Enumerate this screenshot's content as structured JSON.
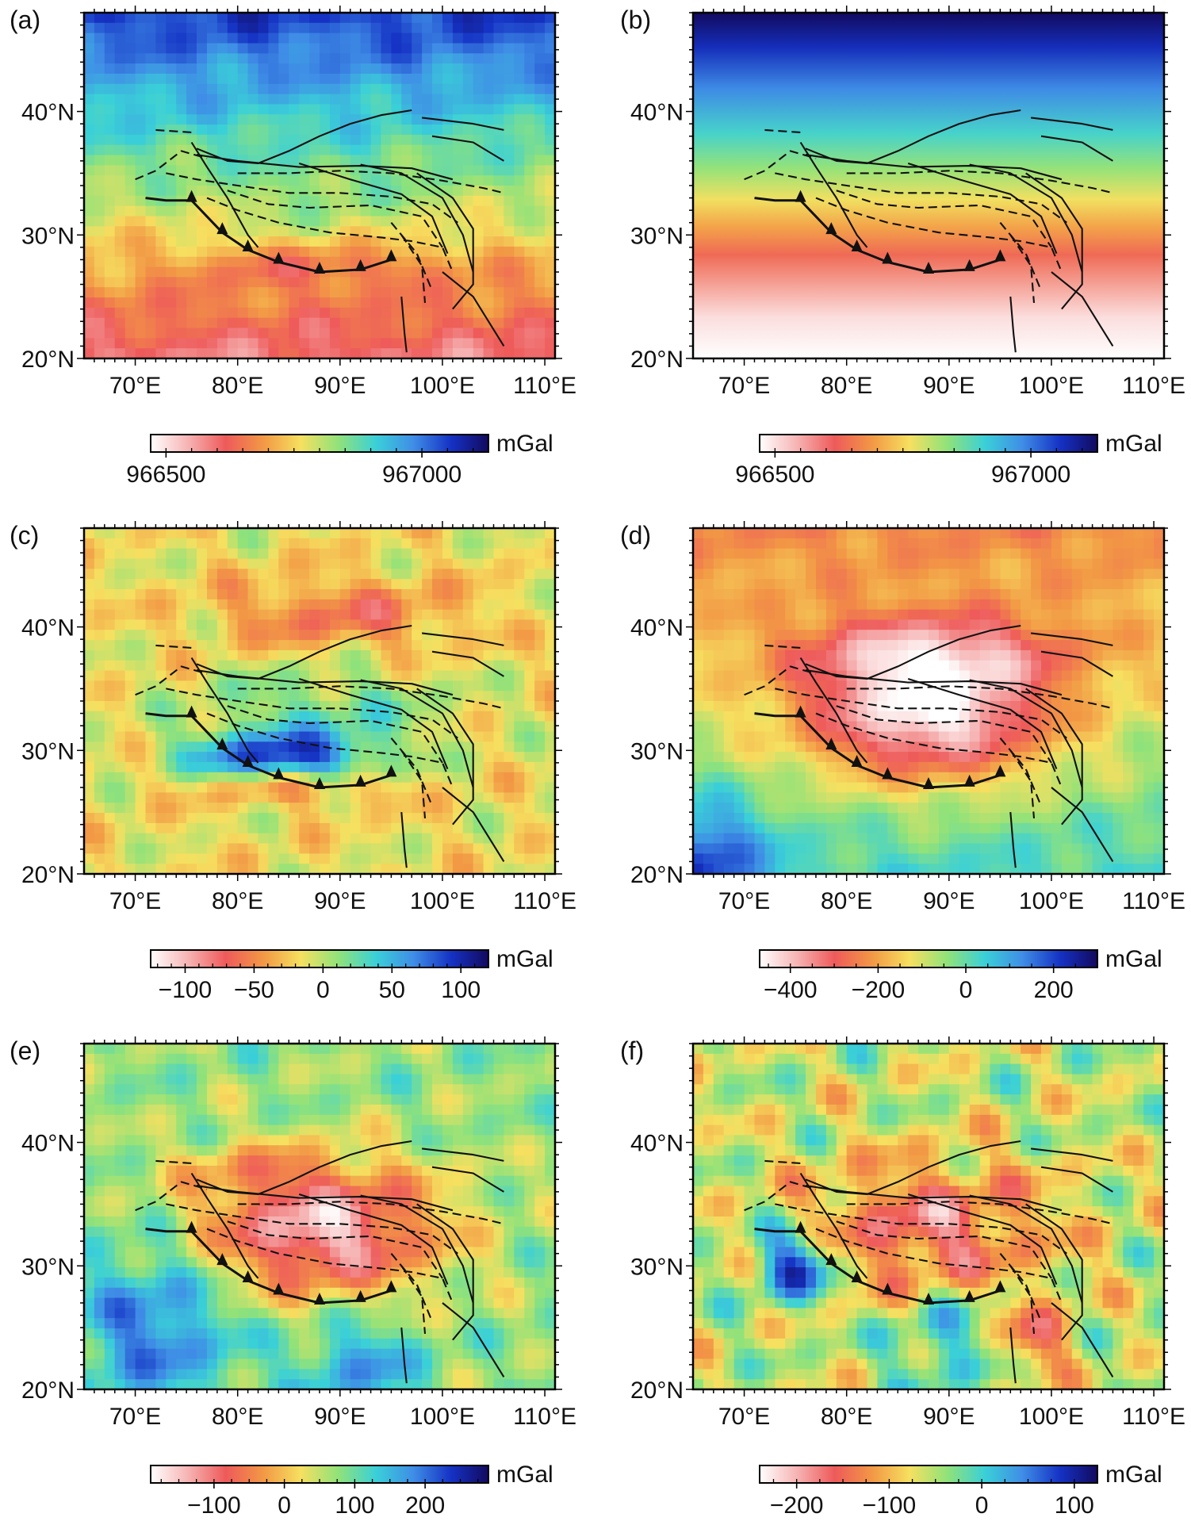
{
  "chart_data": [
    {
      "panel_label": "(a)",
      "type": "heatmap",
      "field": "a",
      "x_ticks": [
        "70°E",
        "80°E",
        "90°E",
        "100°E",
        "110°E"
      ],
      "y_ticks": [
        "20°N",
        "30°N",
        "40°N"
      ],
      "xlim": [
        65,
        111
      ],
      "ylim": [
        20,
        48
      ],
      "colorbar": {
        "unit": "mGal",
        "range": [
          966470,
          967130
        ],
        "tick_labels": [
          "966500",
          "967000"
        ],
        "tick_values": [
          966500,
          967000
        ]
      }
    },
    {
      "panel_label": "(b)",
      "type": "heatmap",
      "field": "b",
      "x_ticks": [
        "70°E",
        "80°E",
        "90°E",
        "100°E",
        "110°E"
      ],
      "y_ticks": [
        "20°N",
        "30°N",
        "40°N"
      ],
      "xlim": [
        65,
        111
      ],
      "ylim": [
        20,
        48
      ],
      "colorbar": {
        "unit": "mGal",
        "range": [
          966470,
          967130
        ],
        "tick_labels": [
          "966500",
          "967000"
        ],
        "tick_values": [
          966500,
          967000
        ]
      }
    },
    {
      "panel_label": "(c)",
      "type": "heatmap",
      "field": "c",
      "x_ticks": [
        "70°E",
        "80°E",
        "90°E",
        "100°E",
        "110°E"
      ],
      "y_ticks": [
        "20°N",
        "30°N",
        "40°N"
      ],
      "xlim": [
        65,
        111
      ],
      "ylim": [
        20,
        48
      ],
      "colorbar": {
        "unit": "mGal",
        "range": [
          -125,
          120
        ],
        "tick_labels": [
          "−100",
          "−50",
          "0",
          "50",
          "100"
        ],
        "tick_values": [
          -100,
          -50,
          0,
          50,
          100
        ]
      }
    },
    {
      "panel_label": "(d)",
      "type": "heatmap",
      "field": "d",
      "x_ticks": [
        "70°E",
        "80°E",
        "90°E",
        "100°E",
        "110°E"
      ],
      "y_ticks": [
        "20°N",
        "30°N",
        "40°N"
      ],
      "xlim": [
        65,
        111
      ],
      "ylim": [
        20,
        48
      ],
      "colorbar": {
        "unit": "mGal",
        "range": [
          -470,
          300
        ],
        "tick_labels": [
          "−400",
          "−200",
          "0",
          "200"
        ],
        "tick_values": [
          -400,
          -200,
          0,
          200
        ]
      }
    },
    {
      "panel_label": "(e)",
      "type": "heatmap",
      "field": "e",
      "x_ticks": [
        "70°E",
        "80°E",
        "90°E",
        "100°E",
        "110°E"
      ],
      "y_ticks": [
        "20°N",
        "30°N",
        "40°N"
      ],
      "xlim": [
        65,
        111
      ],
      "ylim": [
        20,
        48
      ],
      "colorbar": {
        "unit": "mGal",
        "range": [
          -190,
          290
        ],
        "tick_labels": [
          "−100",
          "0",
          "100",
          "200"
        ],
        "tick_values": [
          -100,
          0,
          100,
          200
        ]
      }
    },
    {
      "panel_label": "(f)",
      "type": "heatmap",
      "field": "f",
      "x_ticks": [
        "70°E",
        "80°E",
        "90°E",
        "100°E",
        "110°E"
      ],
      "y_ticks": [
        "20°N",
        "30°N",
        "40°N"
      ],
      "xlim": [
        65,
        111
      ],
      "ylim": [
        20,
        48
      ],
      "colorbar": {
        "unit": "mGal",
        "range": [
          -240,
          125
        ],
        "tick_labels": [
          "−200",
          "−100",
          "0",
          "100"
        ],
        "tick_values": [
          -200,
          -100,
          0,
          100
        ]
      }
    }
  ],
  "colormap": [
    "#ffffff",
    "#f6b3b3",
    "#ee5a5a",
    "#f29845",
    "#f6e060",
    "#90e27a",
    "#3ad0d8",
    "#3f8de6",
    "#1532c4",
    "#120a5e"
  ],
  "faults": {
    "solid": [
      [
        [
          75.5,
          37.5
        ],
        [
          77,
          35.5
        ],
        [
          79,
          33
        ],
        [
          81,
          30
        ],
        [
          82,
          29
        ]
      ],
      [
        [
          76,
          37
        ],
        [
          79,
          36
        ],
        [
          82,
          35.8
        ],
        [
          85,
          36.8
        ],
        [
          88,
          38
        ],
        [
          91,
          39
        ],
        [
          94,
          39.7
        ],
        [
          97,
          40.1
        ]
      ],
      [
        [
          76,
          36.5
        ],
        [
          80,
          36
        ],
        [
          86,
          35.5
        ],
        [
          92,
          35.6
        ],
        [
          97,
          35.4
        ],
        [
          101,
          34.5
        ]
      ],
      [
        [
          86,
          35.8
        ],
        [
          91,
          34.5
        ],
        [
          96,
          33.3
        ],
        [
          99,
          31.5
        ],
        [
          100.5,
          28.5
        ]
      ],
      [
        [
          92,
          35.7
        ],
        [
          96,
          35
        ],
        [
          100,
          33
        ],
        [
          102,
          30
        ],
        [
          103,
          27
        ]
      ],
      [
        [
          97.5,
          35
        ],
        [
          101,
          33
        ],
        [
          103,
          30.5
        ],
        [
          103,
          26
        ],
        [
          101,
          24
        ]
      ],
      [
        [
          100,
          27
        ],
        [
          103,
          25
        ],
        [
          106,
          21
        ]
      ],
      [
        [
          98,
          39.5
        ],
        [
          103,
          39
        ],
        [
          106,
          38.5
        ]
      ],
      [
        [
          99,
          38
        ],
        [
          103,
          37.5
        ],
        [
          106,
          36
        ]
      ],
      [
        [
          96,
          25
        ],
        [
          96.3,
          22
        ],
        [
          96.5,
          20.5
        ]
      ]
    ],
    "dashed": [
      [
        [
          72,
          38.5
        ],
        [
          75.5,
          38.3
        ]
      ],
      [
        [
          70,
          34.5
        ],
        [
          72,
          35.2
        ],
        [
          74.5,
          36.8
        ],
        [
          77,
          36.2
        ]
      ],
      [
        [
          73,
          35
        ],
        [
          76,
          34.5
        ],
        [
          80,
          34
        ],
        [
          85,
          33.4
        ],
        [
          90,
          33.4
        ],
        [
          95,
          33.1
        ],
        [
          99,
          32.5
        ],
        [
          101.5,
          31
        ]
      ],
      [
        [
          77,
          33
        ],
        [
          80,
          32
        ],
        [
          84,
          31
        ],
        [
          89,
          30.2
        ],
        [
          94,
          29.8
        ],
        [
          97,
          29.5
        ],
        [
          100,
          29
        ],
        [
          101,
          27
        ]
      ],
      [
        [
          80,
          35
        ],
        [
          85,
          35
        ],
        [
          90,
          35.2
        ],
        [
          95,
          35
        ],
        [
          100,
          34.4
        ],
        [
          104,
          33.8
        ],
        [
          106,
          33.4
        ]
      ],
      [
        [
          79,
          33.6
        ],
        [
          83,
          32.5
        ],
        [
          87,
          32.2
        ],
        [
          93,
          32.4
        ],
        [
          98,
          31.5
        ],
        [
          100,
          29
        ]
      ],
      [
        [
          96,
          30
        ],
        [
          98,
          27.5
        ],
        [
          98.3,
          24.5
        ]
      ],
      [
        [
          95,
          31
        ],
        [
          97.5,
          28.5
        ],
        [
          99,
          25.5
        ]
      ]
    ],
    "thrust": [
      [
        71,
        33
      ],
      [
        73,
        32.8
      ],
      [
        75.5,
        32.8
      ],
      [
        78.5,
        30.2
      ],
      [
        81,
        28.8
      ],
      [
        84,
        27.8
      ],
      [
        88,
        27
      ],
      [
        92,
        27.2
      ],
      [
        95,
        28
      ]
    ]
  }
}
